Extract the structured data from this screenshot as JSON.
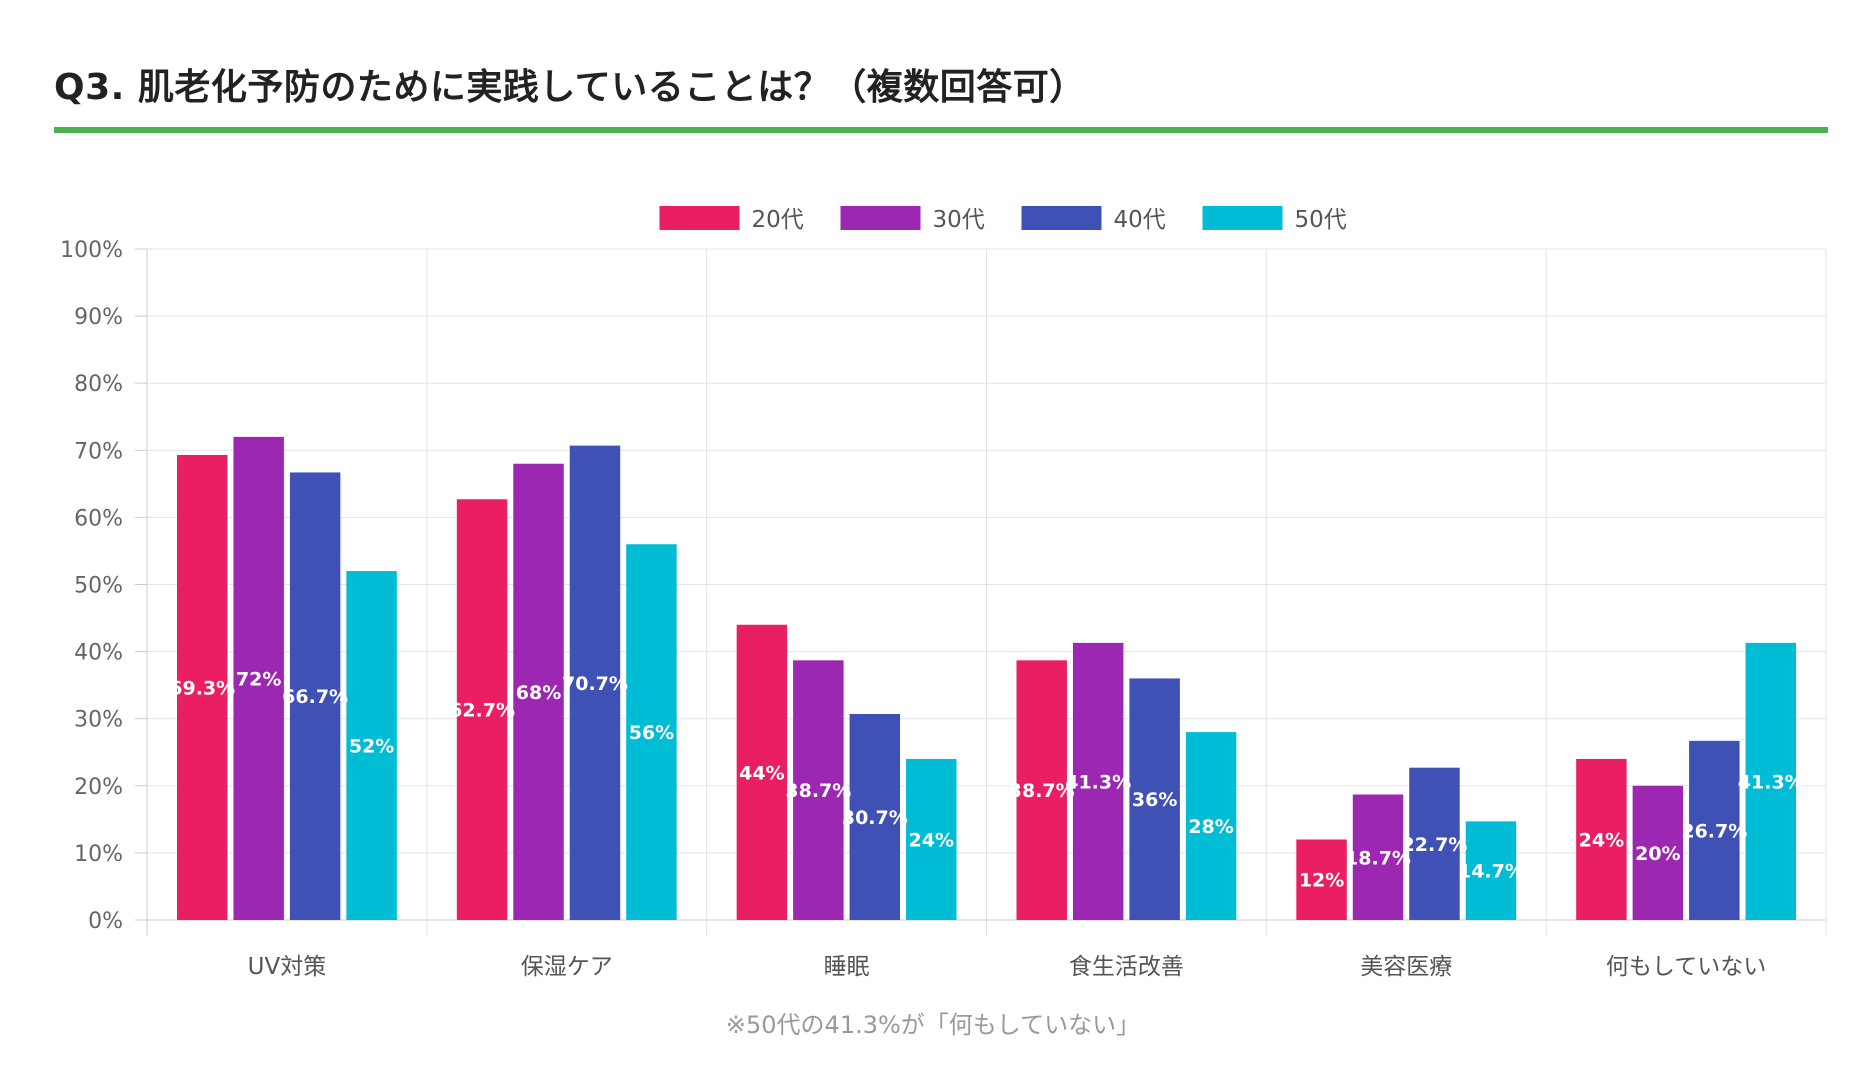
{
  "page": {
    "title": "Q3. 肌老化予防のために実践していることは？（複数回答可）",
    "accent_color": "#4caf50",
    "footnote": "※50代の41.3%が「何もしていない」"
  },
  "chart_data": {
    "type": "bar",
    "title": "Q3. 肌老化予防のために実践していることは？（複数回答可）",
    "xlabel": "",
    "ylabel": "",
    "ylim": [
      0,
      100
    ],
    "y_ticks": [
      0,
      10,
      20,
      30,
      40,
      50,
      60,
      70,
      80,
      90,
      100
    ],
    "y_tick_suffix": "%",
    "grid": true,
    "legend_position": "top-center",
    "categories": [
      "UV対策",
      "保湿ケア",
      "睡眠",
      "食生活改善",
      "美容医療",
      "何もしていない"
    ],
    "series": [
      {
        "name": "20代",
        "color": "#e91e63",
        "values": [
          69.3,
          62.7,
          44,
          38.7,
          12,
          24
        ]
      },
      {
        "name": "30代",
        "color": "#9c27b0",
        "values": [
          72,
          68,
          38.7,
          41.3,
          18.7,
          20
        ]
      },
      {
        "name": "40代",
        "color": "#3f51b5",
        "values": [
          66.7,
          70.7,
          30.7,
          36,
          22.7,
          26.7
        ]
      },
      {
        "name": "50代",
        "color": "#00bcd4",
        "values": [
          52,
          56,
          24,
          28,
          14.7,
          41.3
        ]
      }
    ]
  }
}
